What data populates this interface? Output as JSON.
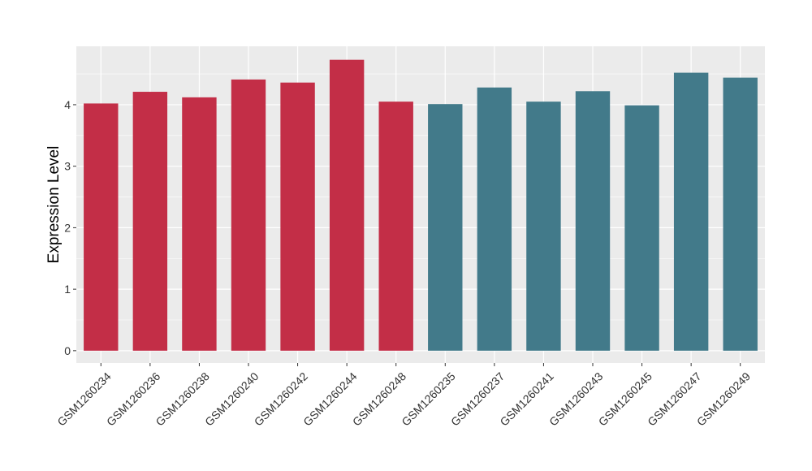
{
  "chart_data": {
    "type": "bar",
    "title": "",
    "xlabel": "",
    "ylabel": "Expression Level",
    "ylim": [
      -0.2,
      4.95
    ],
    "yticks": [
      0,
      1,
      2,
      3,
      4
    ],
    "grid": true,
    "legend": "none",
    "categories": [
      "GSM1260234",
      "GSM1260236",
      "GSM1260238",
      "GSM1260240",
      "GSM1260242",
      "GSM1260244",
      "GSM1260248",
      "GSM1260235",
      "GSM1260237",
      "GSM1260241",
      "GSM1260243",
      "GSM1260245",
      "GSM1260247",
      "GSM1260249"
    ],
    "values": [
      4.02,
      4.21,
      4.12,
      4.41,
      4.36,
      4.73,
      4.05,
      4.01,
      4.28,
      4.05,
      4.22,
      3.99,
      4.52,
      4.44
    ],
    "colors": [
      "#C32E47",
      "#C32E47",
      "#C32E47",
      "#C32E47",
      "#C32E47",
      "#C32E47",
      "#C32E47",
      "#427A8A",
      "#427A8A",
      "#427A8A",
      "#427A8A",
      "#427A8A",
      "#427A8A",
      "#427A8A"
    ],
    "panel_background": "#EBEBEB",
    "grid_color": "#FFFFFF"
  }
}
